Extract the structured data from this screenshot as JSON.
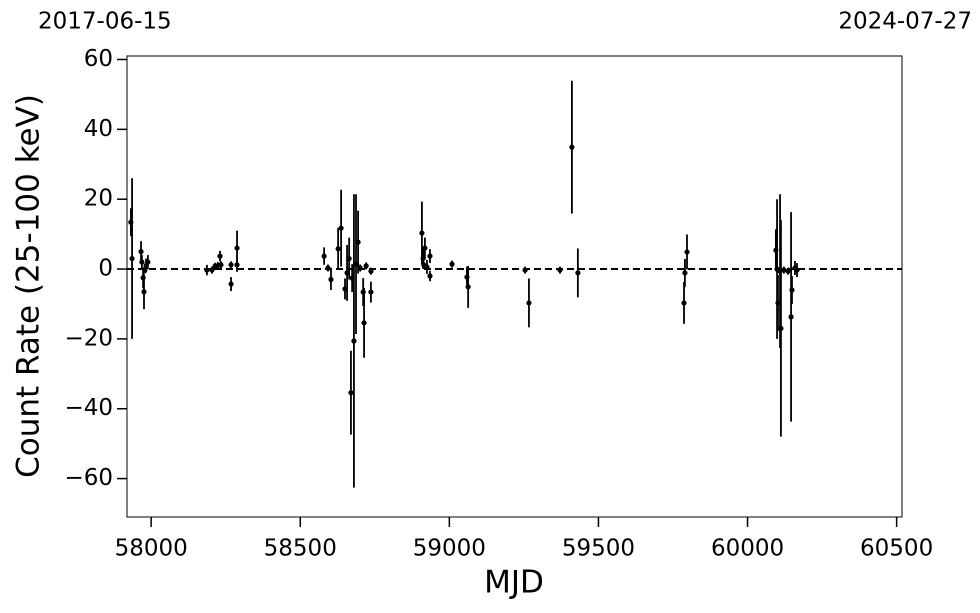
{
  "chart_data": {
    "type": "scatter",
    "annotations": [
      "2017-06-15",
      "2024-07-27"
    ],
    "xlabel": "MJD",
    "ylabel": "Count Rate (25-100 keV)",
    "xlim": [
      57919,
      60518
    ],
    "ylim": [
      -71,
      61
    ],
    "xticks": [
      58000,
      58500,
      59000,
      59500,
      60000,
      60500
    ],
    "yticks": [
      {
        "value": -60,
        "label": "−60"
      },
      {
        "value": -40,
        "label": "−40"
      },
      {
        "value": -20,
        "label": "−20"
      },
      0,
      20,
      40,
      60
    ],
    "hline": 0,
    "grid": false,
    "color": "#000000",
    "series": [
      {
        "name": "data",
        "color": "#000000",
        "x": [
          57932,
          57936,
          57966,
          57969,
          57973,
          57976,
          57979,
          57983,
          57989,
          58187,
          58204,
          58214,
          58224,
          58231,
          58234,
          58268,
          58268,
          58288,
          58288,
          58580,
          58593,
          58603,
          58627,
          58637,
          58650,
          58657,
          58664,
          58670,
          58674,
          58680,
          58687,
          58694,
          58701,
          58711,
          58714,
          58721,
          58737,
          58737,
          58908,
          58912,
          58915,
          58918,
          58925,
          58935,
          58935,
          59009,
          59059,
          59063,
          59254,
          59267,
          59371,
          59411,
          59431,
          59787,
          59790,
          59797,
          60095,
          60099,
          60102,
          60109,
          60112,
          60122,
          60136,
          60146,
          60149,
          60159,
          60166
        ],
        "values": [
          13.4,
          3,
          5,
          2,
          -2.5,
          -6.5,
          -0.3,
          1,
          2,
          -0.3,
          -0.3,
          0.8,
          1,
          3.7,
          1.2,
          -4.3,
          1.2,
          6,
          1.2,
          3.7,
          0.3,
          -3,
          5.8,
          11.7,
          -5.7,
          -1.1,
          3,
          -35.4,
          -2.6,
          -20.6,
          1.4,
          7.7,
          0.3,
          -6.6,
          -15.4,
          0.9,
          -0.6,
          -6.6,
          10.3,
          3,
          1.1,
          6,
          0.6,
          3.7,
          -2,
          1.4,
          -2.3,
          -5.1,
          -0.3,
          -9.7,
          -0.3,
          34.9,
          -1.1,
          -9.7,
          -1.1,
          4.9,
          5.4,
          0,
          -9.7,
          -0.6,
          -17,
          -0.3,
          -0.6,
          -13.7,
          -6,
          0.3,
          -0.3
        ],
        "errors": [
          4,
          23,
          3,
          2,
          3,
          5,
          1,
          2,
          2,
          1.5,
          1,
          1,
          1,
          1.5,
          1,
          2,
          1,
          5,
          2,
          2.5,
          1,
          3,
          6,
          11,
          3,
          8,
          6,
          12,
          4,
          42,
          20,
          9,
          1,
          4,
          10,
          1,
          1,
          3,
          9,
          3,
          1,
          3,
          2,
          2,
          1.5,
          1,
          3,
          6,
          1,
          7,
          1,
          19,
          7,
          6,
          4,
          5,
          6,
          20,
          8,
          22,
          31,
          1,
          1,
          30,
          4,
          2,
          2
        ]
      }
    ]
  }
}
